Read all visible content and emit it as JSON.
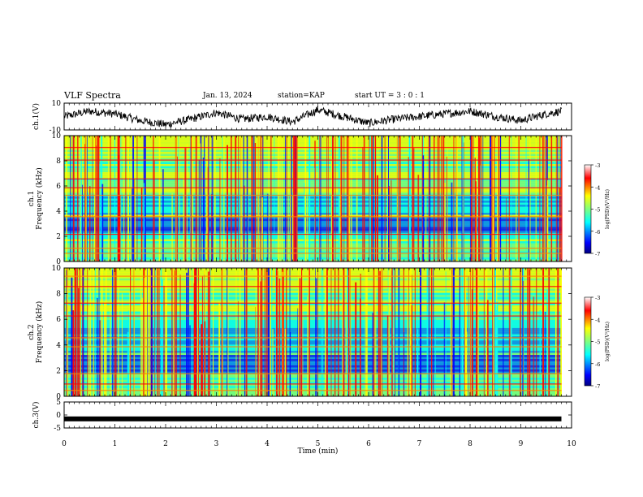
{
  "header": {
    "title": "VLF Spectra",
    "date": "Jan. 13, 2024",
    "station": "station=KAP",
    "start_ut": "start UT = 3 : 0 : 1"
  },
  "chart_data": [
    {
      "type": "line",
      "name": "ch1-waveform",
      "ylabel": "ch.1(V)",
      "ylim": [
        -10,
        10
      ],
      "yticklabels": [
        "10",
        "-10"
      ],
      "xlim": [
        0,
        10
      ],
      "x_minutes": [
        0,
        0.5,
        1,
        1.5,
        2,
        2.5,
        3,
        3.5,
        4,
        4.5,
        5,
        5.5,
        6,
        6.5,
        7,
        7.5,
        8,
        8.5,
        9,
        9.5,
        9.8
      ],
      "y_approx": [
        0,
        4,
        2,
        -3,
        -6,
        -2,
        3,
        -2,
        0,
        -4,
        5,
        0,
        -5,
        -2,
        0,
        2,
        4,
        0,
        -3,
        2,
        4
      ]
    },
    {
      "type": "heatmap",
      "name": "ch1-spectrogram",
      "ylabel": "ch.1\nFrequency (kHz)",
      "ylim": [
        0,
        10
      ],
      "yticklabels": [
        "0",
        "2",
        "4",
        "6",
        "8",
        "10"
      ],
      "xlim": [
        0,
        10
      ],
      "colorbar": {
        "label": "log(PSD)(V²/Hz)",
        "range": [
          -7,
          -3
        ],
        "ticklabels": [
          "-3",
          "-4",
          "-5",
          "-6",
          "-7"
        ]
      }
    },
    {
      "type": "heatmap",
      "name": "ch2-spectrogram",
      "ylabel": "ch.2\nFrequency (kHz)",
      "ylim": [
        0,
        10
      ],
      "yticklabels": [
        "0",
        "2",
        "4",
        "6",
        "8",
        "10"
      ],
      "xlim": [
        0,
        10
      ],
      "colorbar": {
        "label": "log(PSD)(V²/Hz)",
        "range": [
          -7,
          -3
        ],
        "ticklabels": [
          "-3",
          "-4",
          "-5",
          "-6",
          "-7"
        ]
      }
    },
    {
      "type": "line",
      "name": "ch3-waveform",
      "ylabel": "ch.3(V)",
      "ylim": [
        -5,
        5
      ],
      "yticklabels": [
        "5",
        "0",
        "-5"
      ],
      "xlim": [
        0,
        10
      ],
      "x_minutes": [
        0,
        9.8
      ],
      "y_approx": [
        -1.5,
        -1.5
      ]
    }
  ],
  "xaxis": {
    "label": "Time (min)",
    "ticklabels": [
      "0",
      "1",
      "2",
      "3",
      "4",
      "5",
      "6",
      "7",
      "8",
      "9",
      "10"
    ]
  },
  "colors": {
    "jet": [
      "#00007f",
      "#0000ff",
      "#007fff",
      "#00ffff",
      "#7fff7f",
      "#ffff00",
      "#ff7f00",
      "#ff0000",
      "#7f0000"
    ]
  }
}
